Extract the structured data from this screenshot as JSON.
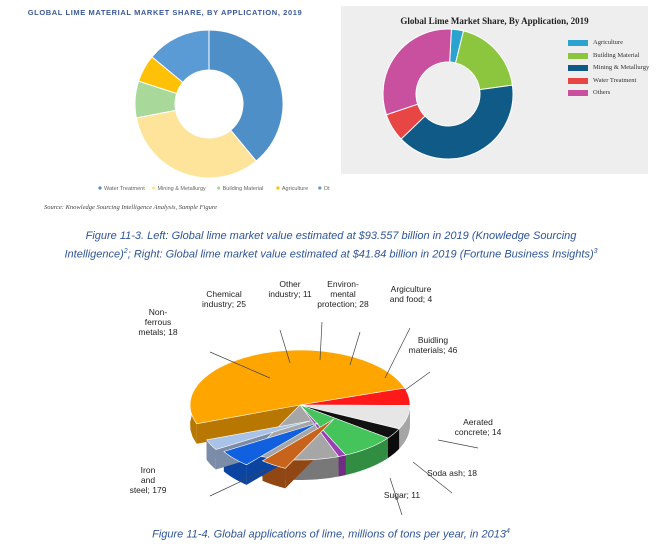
{
  "colors": {
    "caption": "#2f5597",
    "title_left": "#3b5998"
  },
  "left_source": "Source: Knowledge Sourcing Intelligence Analysis, Sample Figure",
  "figure_11_3_caption": {
    "line1": "Figure 11-3. Left: Global lime market value estimated at $93.557 billion in 2019 (Knowledge Sourcing",
    "line2a": "Intelligence)",
    "sup2": "2",
    "line2b": "; Right: Global lime market value estimated at $41.84 billion in 2019 (Fortune Business Insights)",
    "sup3": "3"
  },
  "figure_11_4_caption": {
    "text": "Figure 11-4. Global applications of lime, millions of tons per year, in 2013",
    "sup": "4"
  },
  "chart_data": [
    {
      "type": "pie",
      "title": "GLOBAL LIME MATERIAL MARKET SHARE, BY APPLICATION, 2019",
      "legend_position": "bottom",
      "categories": [
        "Water Treatment",
        "Mining & Metallurgy",
        "Building Material",
        "Agriculture",
        "Others"
      ],
      "values": [
        39,
        33,
        8,
        6,
        14
      ],
      "colors": [
        "#4f8fc8",
        "#fde49a",
        "#a8d89a",
        "#ffc107",
        "#5b9bd5"
      ]
    },
    {
      "type": "pie",
      "title": "Global Lime Market Share, By Application, 2019",
      "legend_position": "right",
      "categories": [
        "Agriculture",
        "Building Material",
        "Mining & Metallurgy",
        "Water Treatment",
        "Others"
      ],
      "values": [
        3,
        19,
        40,
        7,
        31
      ],
      "colors": [
        "#2aa3cf",
        "#8cc63f",
        "#0f5a86",
        "#e84545",
        "#c94f9f"
      ]
    },
    {
      "type": "pie",
      "title": "",
      "units": "millions of tons per year",
      "categories": [
        "Iron and steel",
        "Non-ferrous metals",
        "Chemical industry",
        "Other industry",
        "Environ-mental protection",
        "Argiculture and food",
        "Buidling materials",
        "Aerated concrete",
        "Soda ash",
        "Sugar"
      ],
      "values": [
        179,
        18,
        25,
        11,
        28,
        4,
        46,
        14,
        18,
        11
      ],
      "labels": [
        "Iron and steel; 179",
        "Non-ferrous metals; 18",
        "Chemical industry; 25",
        "Other industry; 11",
        "Environ-mental protection; 28",
        "Argiculture and food; 4",
        "Buidling materials; 46",
        "Aerated concrete; 14",
        "Soda ash; 18",
        "Sugar; 11"
      ],
      "colors": [
        "#ffa500",
        "#ff1a1a",
        "#e6e6e6",
        "#111111",
        "#44c45a",
        "#9b3fb5",
        "#a6a6a6",
        "#c8631b",
        "#1060e0",
        "#a9c3e8"
      ]
    }
  ]
}
